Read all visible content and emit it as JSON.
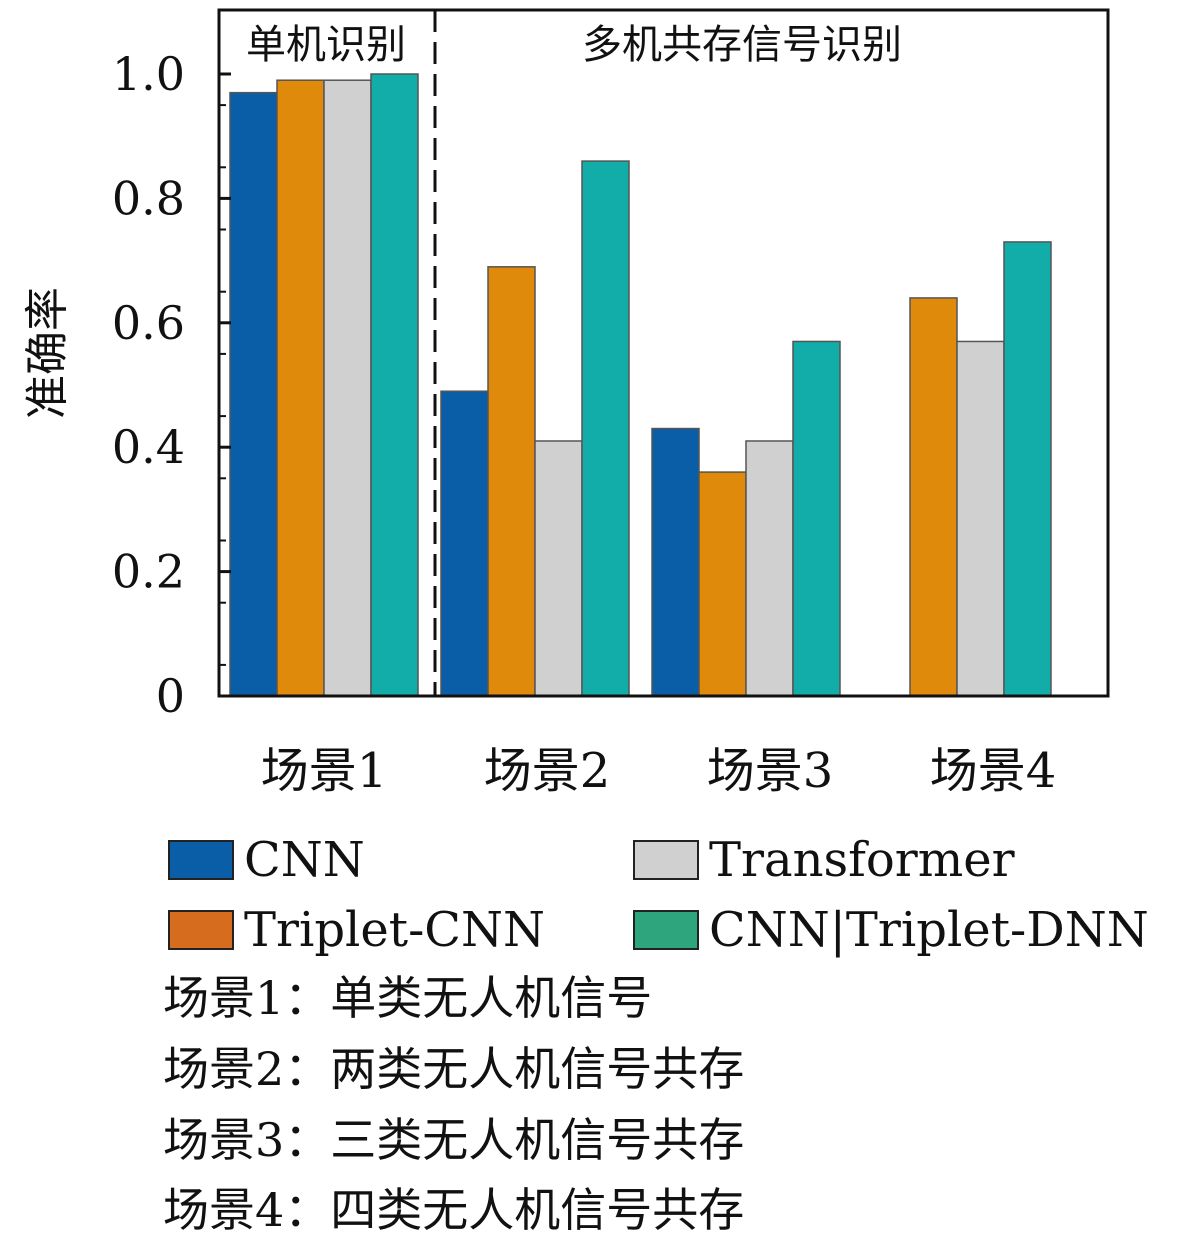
{
  "chart_data": {
    "type": "bar",
    "categories": [
      "场景1",
      "场景2",
      "场景3",
      "场景4"
    ],
    "ylabel": "准确率",
    "xlabel": "",
    "ylim": [
      0,
      1.0
    ],
    "yticks": [
      "0",
      "0.2",
      "0.4",
      "0.6",
      "0.8",
      "1.0"
    ],
    "grid": false,
    "region_labels": [
      "单机识别",
      "多机共存信号识别"
    ],
    "series": [
      {
        "name": "CNN",
        "color": "#0a5ea8",
        "values": [
          0.97,
          0.49,
          0.43,
          null
        ]
      },
      {
        "name": "Triplet-CNN",
        "color": "#e08a0c",
        "values": [
          0.99,
          0.69,
          0.36,
          0.64
        ]
      },
      {
        "name": "Transformer",
        "color": "#d0d0d0",
        "values": [
          0.99,
          0.41,
          0.41,
          0.57
        ]
      },
      {
        "name": "CNN|Triplet-DNN",
        "color": "#12ada8",
        "values": [
          1.0,
          0.86,
          0.57,
          0.73
        ]
      }
    ],
    "legend_swatch_colors": [
      "#0a5ea8",
      "#d66c1e",
      "#d0d0d0",
      "#2fa57d"
    ]
  },
  "notes": [
    "场景1：单类无人机信号",
    "场景2：两类无人机信号共存",
    "场景3：三类无人机信号共存",
    "场景4：四类无人机信号共存"
  ]
}
